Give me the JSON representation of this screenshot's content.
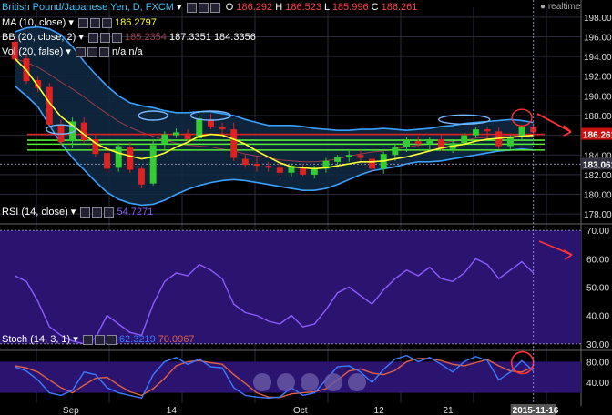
{
  "title": {
    "symbol": "British Pound/Japanese Yen, D, FXCM",
    "o_label": "O",
    "o": "186.292",
    "h_label": "H",
    "h": "186.523",
    "l_label": "L",
    "l": "185.996",
    "c_label": "C",
    "c": "186.261",
    "realtime": "realtime"
  },
  "indicators": {
    "ma": {
      "label": "MA (10, close)",
      "value": "186.2797"
    },
    "bb": {
      "label": "BB (20, close, 2)",
      "v1": "185.2354",
      "v2": "187.3351",
      "v3": "184.3356"
    },
    "vol": {
      "label": "Vol (20, false)",
      "v1": "n/a",
      "v2": "n/a"
    },
    "rsi": {
      "label": "RSI (14, close)",
      "value": "54.7271"
    },
    "stoch": {
      "label": "Stoch (14, 3, 1)",
      "k": "62.3219",
      "d": "70.0967"
    }
  },
  "price_labels": {
    "last": "186.261",
    "level": "183.061"
  },
  "date_label": "2015-11-16",
  "colors": {
    "bg": "#000000",
    "grid": "#2a2a3a",
    "bull": "#33cc33",
    "bear": "#dd2222",
    "ma": "#ffff33",
    "bb": "#3aa0ff",
    "panel": "#2b1470",
    "stochK": "#3a7bff",
    "stochD": "#e06040",
    "rsi": "#8a5cff",
    "annot": "#ff3333",
    "ellipse": "#7ab8ff"
  },
  "chart_data": [
    {
      "type": "candlestick",
      "name": "price",
      "x": [
        "Sep",
        "14",
        "Oct",
        "12",
        "21",
        "Nov"
      ],
      "ylim": [
        177,
        199
      ],
      "yticks": [
        178,
        180,
        182,
        184,
        186,
        188,
        190,
        192,
        194,
        196,
        198
      ],
      "candles": [
        [
          195.5,
          195.9,
          193.4,
          193.7
        ],
        [
          193.8,
          194.2,
          191.2,
          191.5
        ],
        [
          191.6,
          192.0,
          190.4,
          190.8
        ],
        [
          190.9,
          191.3,
          186.8,
          187.1
        ],
        [
          187.0,
          187.6,
          185.0,
          185.3
        ],
        [
          185.4,
          187.8,
          184.7,
          187.4
        ],
        [
          187.3,
          187.8,
          185.2,
          185.5
        ],
        [
          185.6,
          186.0,
          183.8,
          184.1
        ],
        [
          184.2,
          184.8,
          182.2,
          182.6
        ],
        [
          182.7,
          185.2,
          182.3,
          184.9
        ],
        [
          184.8,
          185.3,
          182.2,
          182.5
        ],
        [
          182.6,
          182.9,
          180.6,
          181.0
        ],
        [
          181.1,
          185.5,
          180.9,
          185.0
        ],
        [
          185.1,
          186.4,
          184.6,
          186.1
        ],
        [
          186.0,
          186.7,
          185.7,
          186.3
        ],
        [
          186.2,
          186.6,
          185.3,
          185.6
        ],
        [
          185.7,
          188.0,
          185.3,
          187.7
        ],
        [
          187.6,
          188.2,
          186.6,
          186.9
        ],
        [
          186.8,
          187.3,
          186.0,
          186.6
        ],
        [
          186.6,
          187.3,
          183.4,
          183.7
        ],
        [
          183.6,
          184.0,
          182.7,
          183.0
        ],
        [
          183.1,
          183.7,
          182.3,
          182.9
        ],
        [
          182.9,
          183.3,
          182.3,
          182.7
        ],
        [
          182.7,
          183.3,
          181.9,
          182.2
        ],
        [
          182.2,
          183.1,
          181.8,
          182.9
        ],
        [
          182.8,
          183.1,
          181.9,
          182.0
        ],
        [
          182.0,
          182.9,
          181.6,
          182.7
        ],
        [
          182.6,
          183.7,
          182.2,
          183.4
        ],
        [
          183.3,
          184.0,
          182.7,
          183.8
        ],
        [
          183.8,
          184.4,
          183.3,
          184.0
        ],
        [
          184.0,
          184.5,
          183.3,
          183.7
        ],
        [
          183.6,
          183.9,
          182.3,
          182.6
        ],
        [
          182.6,
          184.3,
          182.1,
          184.1
        ],
        [
          184.0,
          185.1,
          183.4,
          184.8
        ],
        [
          184.8,
          185.8,
          184.3,
          185.5
        ],
        [
          185.4,
          185.9,
          184.8,
          185.1
        ],
        [
          185.1,
          185.8,
          184.5,
          185.6
        ],
        [
          185.6,
          186.1,
          184.4,
          184.6
        ],
        [
          184.6,
          185.6,
          184.2,
          185.2
        ],
        [
          185.2,
          186.3,
          184.9,
          186.0
        ],
        [
          186.0,
          186.9,
          185.7,
          186.6
        ],
        [
          186.6,
          186.9,
          185.6,
          186.4
        ],
        [
          186.4,
          186.8,
          184.6,
          184.9
        ],
        [
          184.9,
          186.0,
          184.6,
          185.8
        ],
        [
          185.8,
          187.0,
          185.5,
          186.8
        ],
        [
          186.8,
          187.2,
          186.1,
          186.3
        ]
      ],
      "ma10": [
        193.8,
        192.6,
        191.0,
        189.3,
        187.9,
        187.0,
        186.1,
        185.2,
        184.6,
        184.2,
        183.9,
        183.6,
        183.8,
        184.2,
        184.8,
        185.3,
        185.9,
        186.1,
        186.0,
        185.6,
        185.1,
        184.4,
        183.8,
        183.2,
        182.8,
        182.7,
        182.6,
        182.7,
        182.9,
        183.1,
        183.3,
        183.3,
        183.4,
        183.6,
        183.8,
        184.1,
        184.4,
        184.7,
        184.9,
        185.1,
        185.4,
        185.6,
        185.7,
        185.8,
        185.9,
        186.0
      ],
      "bb_upper": [
        196.5,
        196.9,
        197.0,
        196.8,
        196.2,
        195.0,
        193.5,
        192.2,
        191.0,
        190.0,
        189.3,
        189.0,
        188.8,
        188.5,
        188.3,
        188.3,
        188.4,
        188.4,
        188.2,
        188.0,
        187.6,
        187.3,
        187.0,
        187.0,
        187.0,
        186.9,
        186.7,
        186.6,
        186.5,
        186.5,
        186.6,
        186.6,
        186.7,
        186.6,
        186.5,
        186.6,
        186.7,
        186.9,
        187.0,
        187.2,
        187.3,
        187.4,
        187.5,
        187.6,
        187.5,
        187.3
      ],
      "bb_lower": [
        191.0,
        190.0,
        188.9,
        187.0,
        185.2,
        183.7,
        182.5,
        181.3,
        180.2,
        179.5,
        179.1,
        178.9,
        179.0,
        179.4,
        180.0,
        180.5,
        180.9,
        181.2,
        181.4,
        181.5,
        181.4,
        181.2,
        181.0,
        180.8,
        180.6,
        180.4,
        180.4,
        180.6,
        181.0,
        181.5,
        182.0,
        182.4,
        182.6,
        182.8,
        183.1,
        183.3,
        183.3,
        183.4,
        183.6,
        183.8,
        184.0,
        184.2,
        184.4,
        184.5,
        184.6,
        184.5
      ],
      "bb_mid": [
        193.8,
        193.4,
        192.9,
        192.2,
        191.4,
        190.7,
        189.9,
        189.0,
        188.2,
        187.4,
        186.8,
        186.3,
        185.9,
        185.5,
        185.2,
        185.0,
        184.9,
        184.8,
        184.6,
        184.4,
        184.1,
        183.9,
        183.7,
        183.5,
        183.4,
        183.3,
        183.3,
        183.4,
        183.6,
        183.9,
        184.1,
        184.3,
        184.4,
        184.6,
        184.8,
        185.0,
        185.1,
        185.2,
        185.4,
        185.5,
        185.7,
        185.8,
        185.9,
        186.0,
        186.0,
        185.9
      ],
      "hlines": [
        186.1,
        185.5,
        185.1,
        184.5,
        183.061
      ]
    },
    {
      "type": "line",
      "name": "rsi",
      "ylim": [
        28,
        72
      ],
      "yticks": [
        30,
        40,
        50,
        60,
        70
      ],
      "values": [
        54,
        52,
        45,
        36,
        33,
        31,
        30,
        32,
        40,
        37,
        34,
        33,
        44,
        52,
        55,
        54,
        58,
        56,
        53,
        44,
        41,
        40,
        38,
        37,
        40,
        36,
        37,
        42,
        48,
        50,
        47,
        44,
        49,
        53,
        56,
        54,
        57,
        53,
        52,
        55,
        60,
        58,
        53,
        56,
        59,
        55
      ]
    },
    {
      "type": "line",
      "name": "stoch",
      "ylim": [
        0,
        100
      ],
      "yticks": [
        40,
        80
      ],
      "k": [
        70,
        62,
        45,
        20,
        15,
        25,
        60,
        55,
        30,
        20,
        15,
        10,
        55,
        80,
        88,
        75,
        85,
        70,
        68,
        30,
        15,
        12,
        10,
        12,
        30,
        15,
        20,
        45,
        70,
        72,
        60,
        40,
        65,
        85,
        92,
        80,
        88,
        75,
        60,
        80,
        90,
        82,
        45,
        60,
        82,
        62
      ],
      "d": [
        72,
        68,
        60,
        45,
        30,
        20,
        35,
        48,
        50,
        35,
        22,
        15,
        28,
        48,
        72,
        80,
        82,
        78,
        75,
        55,
        38,
        20,
        12,
        11,
        18,
        20,
        22,
        28,
        45,
        62,
        66,
        58,
        55,
        63,
        80,
        86,
        86,
        82,
        75,
        72,
        78,
        84,
        72,
        62,
        60,
        70
      ]
    }
  ]
}
